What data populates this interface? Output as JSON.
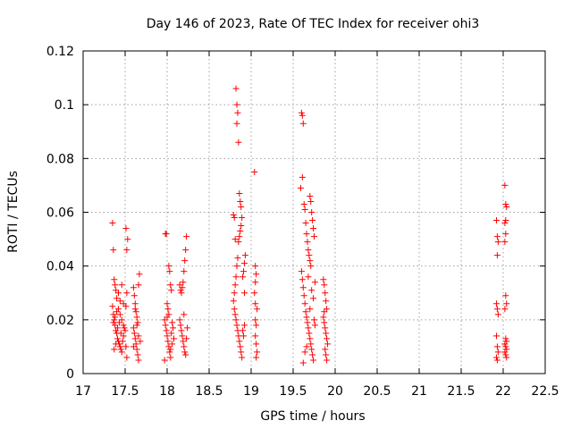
{
  "chart_data": {
    "type": "scatter",
    "title": "Day 146 of 2023, Rate Of TEC Index for receiver ohi3",
    "xlabel": "GPS time / hours",
    "ylabel": "ROTI / TECUs",
    "xlim": [
      17,
      22.5
    ],
    "ylim": [
      0,
      0.12
    ],
    "xticks": [
      17,
      17.5,
      18,
      18.5,
      19,
      19.5,
      20,
      20.5,
      21,
      21.5,
      22,
      22.5
    ],
    "xtick_labels": [
      "17",
      "17.5",
      "18",
      "18.5",
      "19",
      "19.5",
      "20",
      "20.5",
      "21",
      "21.5",
      "22",
      "22.5"
    ],
    "yticks": [
      0,
      0.02,
      0.04,
      0.06,
      0.08,
      0.1,
      0.12
    ],
    "ytick_labels": [
      "0",
      "0.02",
      "0.04",
      "0.06",
      "0.08",
      "0.1",
      "0.12"
    ],
    "grid": true,
    "marker": "+",
    "color": "#ff0000",
    "series": [
      {
        "name": "ROTI",
        "points": [
          [
            17.35,
            0.056
          ],
          [
            17.36,
            0.046
          ],
          [
            17.37,
            0.035
          ],
          [
            17.38,
            0.033
          ],
          [
            17.39,
            0.031
          ],
          [
            17.4,
            0.028
          ],
          [
            17.42,
            0.03
          ],
          [
            17.44,
            0.027
          ],
          [
            17.46,
            0.033
          ],
          [
            17.48,
            0.026
          ],
          [
            17.35,
            0.025
          ],
          [
            17.36,
            0.022
          ],
          [
            17.37,
            0.02
          ],
          [
            17.38,
            0.018
          ],
          [
            17.39,
            0.016
          ],
          [
            17.4,
            0.015
          ],
          [
            17.41,
            0.013
          ],
          [
            17.42,
            0.012
          ],
          [
            17.43,
            0.011
          ],
          [
            17.44,
            0.01
          ],
          [
            17.45,
            0.009
          ],
          [
            17.46,
            0.008
          ],
          [
            17.47,
            0.012
          ],
          [
            17.48,
            0.014
          ],
          [
            17.49,
            0.017
          ],
          [
            17.36,
            0.019
          ],
          [
            17.38,
            0.021
          ],
          [
            17.4,
            0.023
          ],
          [
            17.42,
            0.024
          ],
          [
            17.44,
            0.022
          ],
          [
            17.46,
            0.02
          ],
          [
            17.48,
            0.018
          ],
          [
            17.5,
            0.016
          ],
          [
            17.52,
            0.006
          ],
          [
            17.51,
            0.01
          ],
          [
            17.37,
            0.009
          ],
          [
            17.39,
            0.011
          ],
          [
            17.41,
            0.017
          ],
          [
            17.43,
            0.019
          ],
          [
            17.45,
            0.015
          ],
          [
            17.51,
            0.054
          ],
          [
            17.52,
            0.046
          ],
          [
            17.53,
            0.05
          ],
          [
            17.52,
            0.03
          ],
          [
            17.51,
            0.025
          ],
          [
            17.6,
            0.032
          ],
          [
            17.61,
            0.029
          ],
          [
            17.62,
            0.026
          ],
          [
            17.63,
            0.023
          ],
          [
            17.64,
            0.021
          ],
          [
            17.65,
            0.019
          ],
          [
            17.6,
            0.017
          ],
          [
            17.61,
            0.015
          ],
          [
            17.62,
            0.013
          ],
          [
            17.63,
            0.011
          ],
          [
            17.64,
            0.009
          ],
          [
            17.65,
            0.007
          ],
          [
            17.66,
            0.005
          ],
          [
            17.67,
            0.037
          ],
          [
            17.66,
            0.033
          ],
          [
            17.62,
            0.024
          ],
          [
            17.64,
            0.018
          ],
          [
            17.66,
            0.014
          ],
          [
            17.68,
            0.012
          ],
          [
            17.6,
            0.01
          ],
          [
            17.98,
            0.052
          ],
          [
            17.99,
            0.052
          ],
          [
            18.0,
            0.026
          ],
          [
            18.01,
            0.024
          ],
          [
            18.02,
            0.022
          ],
          [
            17.97,
            0.02
          ],
          [
            17.98,
            0.018
          ],
          [
            17.99,
            0.016
          ],
          [
            18.0,
            0.014
          ],
          [
            18.01,
            0.012
          ],
          [
            18.02,
            0.01
          ],
          [
            18.03,
            0.008
          ],
          [
            18.04,
            0.006
          ],
          [
            17.97,
            0.005
          ],
          [
            18.05,
            0.015
          ],
          [
            18.02,
            0.04
          ],
          [
            18.03,
            0.038
          ],
          [
            18.04,
            0.033
          ],
          [
            18.05,
            0.031
          ],
          [
            18.06,
            0.019
          ],
          [
            18.07,
            0.017
          ],
          [
            18.08,
            0.013
          ],
          [
            18.06,
            0.011
          ],
          [
            18.04,
            0.009
          ],
          [
            18.0,
            0.021
          ],
          [
            18.15,
            0.033
          ],
          [
            18.16,
            0.031
          ],
          [
            18.17,
            0.03
          ],
          [
            18.18,
            0.032
          ],
          [
            18.19,
            0.034
          ],
          [
            18.2,
            0.038
          ],
          [
            18.21,
            0.042
          ],
          [
            18.22,
            0.046
          ],
          [
            18.23,
            0.051
          ],
          [
            18.2,
            0.022
          ],
          [
            18.15,
            0.02
          ],
          [
            18.16,
            0.018
          ],
          [
            18.17,
            0.016
          ],
          [
            18.18,
            0.014
          ],
          [
            18.19,
            0.012
          ],
          [
            18.2,
            0.01
          ],
          [
            18.21,
            0.008
          ],
          [
            18.22,
            0.007
          ],
          [
            18.23,
            0.013
          ],
          [
            18.24,
            0.017
          ],
          [
            18.79,
            0.059
          ],
          [
            18.8,
            0.058
          ],
          [
            18.81,
            0.05
          ],
          [
            18.82,
            0.106
          ],
          [
            18.83,
            0.1
          ],
          [
            18.84,
            0.097
          ],
          [
            18.83,
            0.093
          ],
          [
            18.85,
            0.086
          ],
          [
            18.86,
            0.067
          ],
          [
            18.87,
            0.064
          ],
          [
            18.88,
            0.062
          ],
          [
            18.89,
            0.058
          ],
          [
            18.88,
            0.055
          ],
          [
            18.87,
            0.053
          ],
          [
            18.86,
            0.051
          ],
          [
            18.85,
            0.049
          ],
          [
            18.84,
            0.043
          ],
          [
            18.83,
            0.04
          ],
          [
            18.82,
            0.036
          ],
          [
            18.81,
            0.033
          ],
          [
            18.8,
            0.03
          ],
          [
            18.79,
            0.027
          ],
          [
            18.8,
            0.024
          ],
          [
            18.81,
            0.022
          ],
          [
            18.82,
            0.02
          ],
          [
            18.83,
            0.018
          ],
          [
            18.84,
            0.016
          ],
          [
            18.85,
            0.014
          ],
          [
            18.86,
            0.012
          ],
          [
            18.87,
            0.01
          ],
          [
            18.88,
            0.008
          ],
          [
            18.89,
            0.006
          ],
          [
            18.9,
            0.016
          ],
          [
            18.91,
            0.014
          ],
          [
            18.92,
            0.018
          ],
          [
            18.9,
            0.036
          ],
          [
            18.91,
            0.038
          ],
          [
            18.92,
            0.041
          ],
          [
            18.93,
            0.044
          ],
          [
            18.92,
            0.03
          ],
          [
            19.04,
            0.075
          ],
          [
            19.05,
            0.04
          ],
          [
            19.06,
            0.037
          ],
          [
            19.05,
            0.034
          ],
          [
            19.04,
            0.03
          ],
          [
            19.05,
            0.026
          ],
          [
            19.06,
            0.018
          ],
          [
            19.05,
            0.014
          ],
          [
            19.06,
            0.011
          ],
          [
            19.07,
            0.008
          ],
          [
            19.06,
            0.006
          ],
          [
            19.05,
            0.02
          ],
          [
            19.07,
            0.024
          ],
          [
            19.6,
            0.097
          ],
          [
            19.61,
            0.096
          ],
          [
            19.62,
            0.093
          ],
          [
            19.59,
            0.069
          ],
          [
            19.61,
            0.073
          ],
          [
            19.63,
            0.063
          ],
          [
            19.64,
            0.061
          ],
          [
            19.65,
            0.056
          ],
          [
            19.66,
            0.052
          ],
          [
            19.67,
            0.049
          ],
          [
            19.68,
            0.046
          ],
          [
            19.69,
            0.044
          ],
          [
            19.7,
            0.066
          ],
          [
            19.71,
            0.064
          ],
          [
            19.72,
            0.06
          ],
          [
            19.73,
            0.057
          ],
          [
            19.74,
            0.054
          ],
          [
            19.75,
            0.051
          ],
          [
            19.7,
            0.042
          ],
          [
            19.71,
            0.04
          ],
          [
            19.6,
            0.038
          ],
          [
            19.61,
            0.035
          ],
          [
            19.62,
            0.032
          ],
          [
            19.63,
            0.029
          ],
          [
            19.64,
            0.026
          ],
          [
            19.65,
            0.023
          ],
          [
            19.66,
            0.021
          ],
          [
            19.67,
            0.019
          ],
          [
            19.68,
            0.017
          ],
          [
            19.69,
            0.015
          ],
          [
            19.7,
            0.013
          ],
          [
            19.71,
            0.011
          ],
          [
            19.72,
            0.009
          ],
          [
            19.73,
            0.007
          ],
          [
            19.74,
            0.005
          ],
          [
            19.75,
            0.02
          ],
          [
            19.76,
            0.018
          ],
          [
            19.62,
            0.004
          ],
          [
            19.64,
            0.008
          ],
          [
            19.66,
            0.01
          ],
          [
            19.72,
            0.031
          ],
          [
            19.74,
            0.028
          ],
          [
            19.76,
            0.034
          ],
          [
            19.68,
            0.036
          ],
          [
            19.7,
            0.024
          ],
          [
            19.86,
            0.035
          ],
          [
            19.87,
            0.033
          ],
          [
            19.88,
            0.03
          ],
          [
            19.89,
            0.027
          ],
          [
            19.9,
            0.024
          ],
          [
            19.86,
            0.021
          ],
          [
            19.87,
            0.019
          ],
          [
            19.88,
            0.017
          ],
          [
            19.89,
            0.015
          ],
          [
            19.9,
            0.013
          ],
          [
            19.91,
            0.011
          ],
          [
            19.88,
            0.009
          ],
          [
            19.89,
            0.007
          ],
          [
            19.9,
            0.005
          ],
          [
            19.87,
            0.023
          ],
          [
            21.92,
            0.057
          ],
          [
            21.93,
            0.051
          ],
          [
            21.94,
            0.049
          ],
          [
            21.93,
            0.044
          ],
          [
            21.92,
            0.026
          ],
          [
            21.93,
            0.024
          ],
          [
            21.94,
            0.022
          ],
          [
            21.92,
            0.014
          ],
          [
            21.93,
            0.01
          ],
          [
            21.94,
            0.008
          ],
          [
            21.92,
            0.006
          ],
          [
            21.93,
            0.005
          ],
          [
            22.02,
            0.07
          ],
          [
            22.03,
            0.063
          ],
          [
            22.04,
            0.062
          ],
          [
            22.03,
            0.057
          ],
          [
            22.02,
            0.056
          ],
          [
            22.03,
            0.052
          ],
          [
            22.02,
            0.049
          ],
          [
            22.03,
            0.029
          ],
          [
            22.04,
            0.026
          ],
          [
            22.02,
            0.024
          ],
          [
            22.03,
            0.013
          ],
          [
            22.04,
            0.012
          ],
          [
            22.02,
            0.011
          ],
          [
            22.03,
            0.01
          ],
          [
            22.04,
            0.009
          ],
          [
            22.02,
            0.008
          ],
          [
            22.03,
            0.007
          ],
          [
            22.04,
            0.006
          ]
        ]
      }
    ]
  }
}
